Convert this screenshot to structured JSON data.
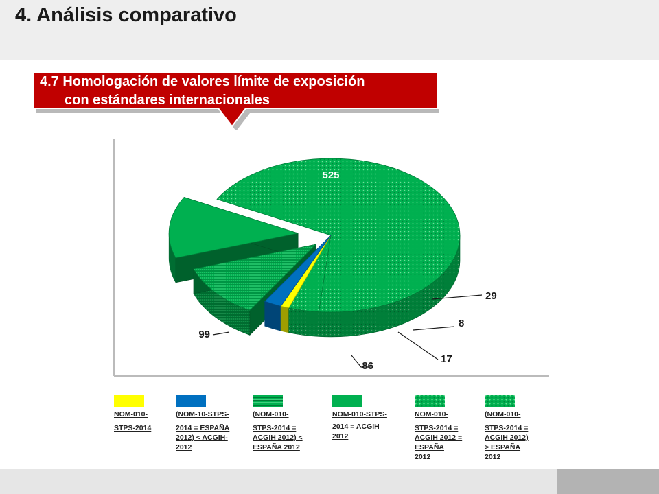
{
  "page": {
    "title": "4. Análisis comparativo",
    "section_line1": "4.7 Homologación de valores límite de exposición",
    "section_line2": "con estándares internacionales"
  },
  "colors": {
    "banner": "#c00000",
    "green": "#00b050",
    "green_dark": "#00873d",
    "yellow": "#ffff00",
    "blue": "#0070c0",
    "header_bg": "#eeeeee"
  },
  "chart_data": {
    "type": "pie",
    "title": "",
    "categories": [
      "NOM-010-STPS-2014",
      "(NOM-10-STPS-2014 = ESPAÑA 2012) < ACGIH-2012",
      "(NOM-010-STPS-2014 = ACGIH 2012) < ESPAÑA 2012",
      "NOM-010-STPS-2014 = ACGIH 2012",
      "NOM-010-STPS-2014 = ACGIH 2012 = ESPAÑA 2012",
      "(NOM-010-STPS-2014 = ACGIH 2012) > ESPAÑA 2012"
    ],
    "slices": [
      {
        "label": "525",
        "value": 525,
        "color": "#00b050",
        "pattern": "dots"
      },
      {
        "label": "29",
        "value": 29,
        "color": "#00b050",
        "pattern": "dots"
      },
      {
        "label": "8",
        "value": 8,
        "color": "#ffff00",
        "pattern": "none"
      },
      {
        "label": "17",
        "value": 17,
        "color": "#0070c0",
        "pattern": "none"
      },
      {
        "label": "86",
        "value": 86,
        "color": "#00b050",
        "pattern": "stripes"
      },
      {
        "label": "99",
        "value": 99,
        "color": "#00b050",
        "pattern": "none"
      }
    ],
    "legend_position": "bottom",
    "legend": [
      {
        "lines": [
          "NOM-010-",
          "STPS-2014"
        ],
        "color": "#ffff00",
        "pattern": "none"
      },
      {
        "lines": [
          "(NOM-10-STPS-",
          "2014 = ESPAÑA",
          "2012) < ACGIH-",
          "2012"
        ],
        "color": "#0070c0",
        "pattern": "none"
      },
      {
        "lines": [
          "(NOM-010-",
          "STPS-2014 =",
          "ACGIH 2012) <",
          "ESPAÑA 2012"
        ],
        "color": "#00b050",
        "pattern": "stripes"
      },
      {
        "lines": [
          "NOM-010-STPS-",
          "2014 = ACGIH",
          "2012"
        ],
        "color": "#00b050",
        "pattern": "none"
      },
      {
        "lines": [
          "NOM-010-",
          "STPS-2014 =",
          "ACGIH 2012 =",
          "ESPAÑA",
          "2012"
        ],
        "color": "#00b050",
        "pattern": "dots"
      },
      {
        "lines": [
          "(NOM-010-",
          "STPS-2014 =",
          "ACGIH 2012)",
          "> ESPAÑA",
          "2012"
        ],
        "color": "#00b050",
        "pattern": "dots"
      }
    ]
  }
}
